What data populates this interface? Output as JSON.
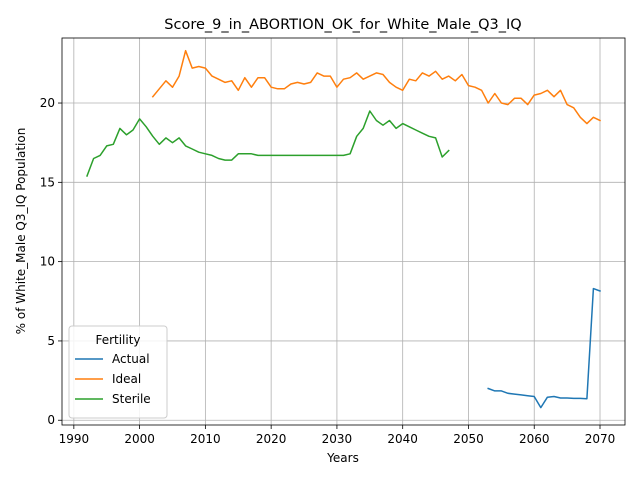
{
  "chart_data": {
    "type": "line",
    "title": "Score_9_in_ABORTION_OK_for_White_Male_Q3_IQ",
    "xlabel": "Years",
    "ylabel": "% of White_Male Q3_IQ Population",
    "xlim": [
      1988.2,
      2073.8
    ],
    "ylim": [
      -0.3,
      24.1
    ],
    "xticks": [
      1990,
      2000,
      2010,
      2020,
      2030,
      2040,
      2050,
      2060,
      2070
    ],
    "yticks": [
      0,
      5,
      10,
      15,
      20
    ],
    "grid": true,
    "legend": {
      "title": "Fertility",
      "position": "lower-left"
    },
    "series": [
      {
        "name": "Actual",
        "color": "#1f77b4",
        "x": [
          2053,
          2054,
          2055,
          2056,
          2057,
          2058,
          2059,
          2060,
          2061,
          2062,
          2063,
          2064,
          2065,
          2066,
          2067,
          2068,
          2069,
          2070
        ],
        "y": [
          2.0,
          1.85,
          1.85,
          1.7,
          1.65,
          1.6,
          1.55,
          1.5,
          0.8,
          1.45,
          1.5,
          1.4,
          1.4,
          1.38,
          1.38,
          1.36,
          8.3,
          8.15
        ]
      },
      {
        "name": "Ideal",
        "color": "#ff7f0e",
        "x": [
          2002,
          2003,
          2004,
          2005,
          2006,
          2007,
          2008,
          2009,
          2010,
          2011,
          2012,
          2013,
          2014,
          2015,
          2016,
          2017,
          2018,
          2019,
          2020,
          2021,
          2022,
          2023,
          2024,
          2025,
          2026,
          2027,
          2028,
          2029,
          2030,
          2031,
          2032,
          2033,
          2034,
          2035,
          2036,
          2037,
          2038,
          2039,
          2040,
          2041,
          2042,
          2043,
          2044,
          2045,
          2046,
          2047,
          2048,
          2049,
          2050,
          2051,
          2052,
          2053,
          2054,
          2055,
          2056,
          2057,
          2058,
          2059,
          2060,
          2061,
          2062,
          2063,
          2064,
          2065,
          2066,
          2067,
          2068,
          2069,
          2070
        ],
        "y": [
          20.4,
          20.9,
          21.4,
          21.0,
          21.7,
          23.3,
          22.2,
          22.3,
          22.2,
          21.7,
          21.5,
          21.3,
          21.4,
          20.8,
          21.6,
          21.0,
          21.6,
          21.6,
          21.0,
          20.9,
          20.9,
          21.2,
          21.3,
          21.2,
          21.3,
          21.9,
          21.7,
          21.7,
          21.0,
          21.5,
          21.6,
          21.9,
          21.5,
          21.7,
          21.9,
          21.8,
          21.3,
          21.0,
          20.8,
          21.5,
          21.4,
          21.9,
          21.7,
          22.0,
          21.5,
          21.7,
          21.4,
          21.8,
          21.1,
          21.0,
          20.8,
          20.0,
          20.6,
          20.0,
          19.9,
          20.3,
          20.3,
          19.9,
          20.5,
          20.6,
          20.8,
          20.4,
          20.8,
          19.9,
          19.7,
          19.1,
          18.7,
          19.1,
          18.9
        ]
      },
      {
        "name": "Sterile",
        "color": "#2ca02c",
        "x": [
          1992,
          1993,
          1994,
          1995,
          1996,
          1997,
          1998,
          1999,
          2000,
          2001,
          2002,
          2003,
          2004,
          2005,
          2006,
          2007,
          2008,
          2009,
          2010,
          2011,
          2012,
          2013,
          2014,
          2015,
          2016,
          2017,
          2018,
          2019,
          2020,
          2021,
          2022,
          2023,
          2024,
          2025,
          2026,
          2027,
          2028,
          2029,
          2030,
          2031,
          2032,
          2033,
          2034,
          2035,
          2036,
          2037,
          2038,
          2039,
          2040,
          2041,
          2042,
          2043,
          2044,
          2045,
          2046,
          2047
        ],
        "y": [
          15.4,
          16.5,
          16.7,
          17.3,
          17.4,
          18.4,
          18.0,
          18.3,
          19.0,
          18.5,
          17.9,
          17.4,
          17.8,
          17.5,
          17.8,
          17.3,
          17.1,
          16.9,
          16.8,
          16.7,
          16.5,
          16.4,
          16.4,
          16.8,
          16.8,
          16.8,
          16.7,
          16.7,
          16.7,
          16.7,
          16.7,
          16.7,
          16.7,
          16.7,
          16.7,
          16.7,
          16.7,
          16.7,
          16.7,
          16.7,
          16.8,
          17.9,
          18.4,
          19.5,
          18.9,
          18.6,
          18.9,
          18.4,
          18.7,
          18.5,
          18.3,
          18.1,
          17.9,
          17.8,
          16.6,
          17.0
        ]
      }
    ]
  }
}
